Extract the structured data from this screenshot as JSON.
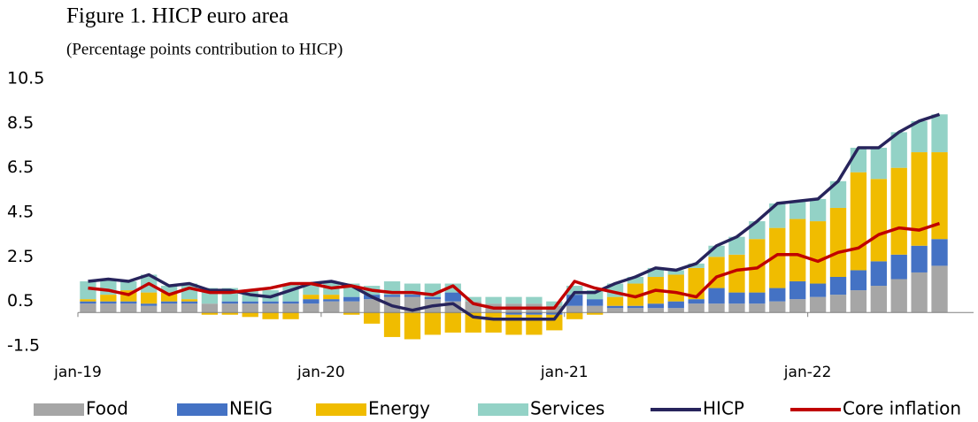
{
  "chart_data": {
    "type": "bar",
    "stacked": true,
    "title": "Figure 1. HICP euro area",
    "subtitle": "(Percentage points contribution to HICP)",
    "categories": [
      "jan-19",
      null,
      null,
      null,
      null,
      null,
      null,
      null,
      null,
      null,
      null,
      null,
      "jan-20",
      null,
      null,
      null,
      null,
      null,
      null,
      null,
      null,
      null,
      null,
      null,
      "jan-21",
      null,
      null,
      null,
      null,
      null,
      null,
      null,
      null,
      null,
      null,
      null,
      "jan-22",
      null,
      null,
      null,
      null,
      null,
      null
    ],
    "series": [
      {
        "name": "Food",
        "color": "#a6a6a6",
        "values": [
          0.4,
          0.4,
          0.4,
          0.3,
          0.4,
          0.4,
          0.4,
          0.4,
          0.4,
          0.4,
          0.4,
          0.4,
          0.5,
          0.5,
          0.6,
          0.7,
          0.7,
          0.6,
          0.5,
          0.5,
          0.4,
          0.4,
          0.4,
          0.3,
          0.3,
          0.3,
          0.2,
          0.2,
          0.2,
          0.2,
          0.4,
          0.4,
          0.4,
          0.4,
          0.5,
          0.6,
          0.7,
          0.8,
          1.0,
          1.2,
          1.5,
          1.8,
          2.1
        ]
      },
      {
        "name": "NEIG",
        "color": "#4472c4",
        "values": [
          0.1,
          0.1,
          0.1,
          0.1,
          0.1,
          0.1,
          0.0,
          0.1,
          0.1,
          0.1,
          0.1,
          0.2,
          0.1,
          0.2,
          0.2,
          0.1,
          0.1,
          0.1,
          0.4,
          0.0,
          0.0,
          -0.1,
          -0.1,
          -0.1,
          0.5,
          0.3,
          0.1,
          0.1,
          0.2,
          0.3,
          0.2,
          0.7,
          0.5,
          0.5,
          0.6,
          0.8,
          0.6,
          0.8,
          0.9,
          1.1,
          1.1,
          1.2,
          1.2
        ]
      },
      {
        "name": "Energy",
        "color": "#f0bc00",
        "values": [
          0.1,
          0.3,
          0.5,
          0.5,
          0.4,
          0.1,
          -0.1,
          -0.1,
          -0.2,
          -0.3,
          -0.3,
          0.2,
          0.2,
          -0.1,
          -0.5,
          -1.1,
          -1.2,
          -1.0,
          -0.9,
          -0.9,
          -0.9,
          -0.9,
          -0.9,
          -0.7,
          -0.3,
          -0.1,
          0.4,
          1.0,
          1.2,
          1.2,
          1.4,
          1.4,
          1.7,
          2.4,
          2.7,
          2.8,
          2.8,
          3.1,
          4.4,
          3.7,
          3.9,
          4.2,
          3.9
        ]
      },
      {
        "name": "Services",
        "color": "#93d2c6",
        "values": [
          0.8,
          0.7,
          0.4,
          0.8,
          0.3,
          0.7,
          0.7,
          0.6,
          0.5,
          0.5,
          0.8,
          0.5,
          0.6,
          0.6,
          0.4,
          0.6,
          0.5,
          0.6,
          0.4,
          0.2,
          0.3,
          0.3,
          0.3,
          0.2,
          0.4,
          0.4,
          0.6,
          0.3,
          0.4,
          0.2,
          0.2,
          0.5,
          0.8,
          0.8,
          1.1,
          0.8,
          1.0,
          1.2,
          1.1,
          1.4,
          1.6,
          1.4,
          1.7
        ]
      },
      {
        "name": "HICP",
        "type": "line",
        "color": "#27245c",
        "values": [
          1.4,
          1.5,
          1.4,
          1.7,
          1.2,
          1.3,
          1.0,
          1.0,
          0.8,
          0.7,
          1.0,
          1.3,
          1.4,
          1.2,
          0.7,
          0.3,
          0.1,
          0.3,
          0.4,
          -0.2,
          -0.3,
          -0.3,
          -0.3,
          -0.3,
          0.9,
          0.9,
          1.3,
          1.6,
          2.0,
          1.9,
          2.2,
          3.0,
          3.4,
          4.1,
          4.9,
          5.0,
          5.1,
          5.9,
          7.4,
          7.4,
          8.1,
          8.6,
          8.9
        ]
      },
      {
        "name": "Core inflation",
        "type": "line",
        "color": "#c00000",
        "values": [
          1.1,
          1.0,
          0.8,
          1.3,
          0.8,
          1.1,
          0.9,
          0.9,
          1.0,
          1.1,
          1.3,
          1.3,
          1.1,
          1.2,
          1.0,
          0.9,
          0.9,
          0.8,
          1.2,
          0.4,
          0.2,
          0.2,
          0.2,
          0.2,
          1.4,
          1.1,
          0.9,
          0.7,
          1.0,
          0.9,
          0.7,
          1.6,
          1.9,
          2.0,
          2.6,
          2.6,
          2.3,
          2.7,
          2.9,
          3.5,
          3.8,
          3.7,
          4.0
        ]
      }
    ],
    "ylim": [
      -1.5,
      10.5
    ],
    "yticks": [
      10.5,
      8.5,
      6.5,
      4.5,
      2.5,
      0.5,
      -1.5
    ],
    "grid": false,
    "legend": "bottom"
  }
}
